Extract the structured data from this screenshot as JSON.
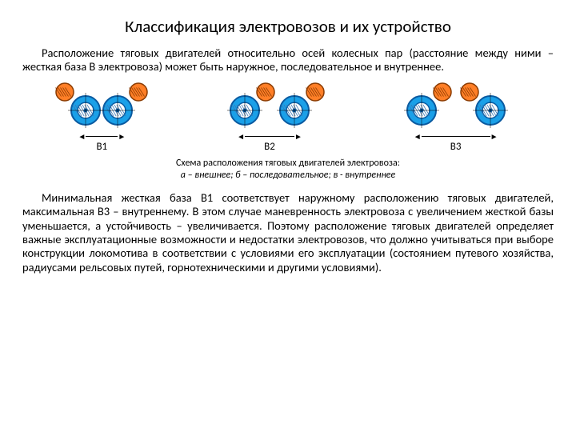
{
  "title": "Классификация электровозов и их устройство",
  "para1": "Расположение тяговых двигателей относительно осей колесных пар (расстояние между ними – жесткая база В электровоза) может быть наружное, последовательное и внутреннее.",
  "caption_line1": "Схема расположения тяговых двигателей электровоза:",
  "caption_line2": "а – внешнее; б – последовательное; в - внутреннее",
  "para2": "Минимальная жесткая база В1 соответствует наружному расположению тяговых двигателей, максимальная В3 – внутреннему. В этом случае маневренность электровоза с увеличением жесткой базы уменьшается, а устойчивость – увеличивается. Поэтому расположение тяговых двигателей определяет важные эксплуатационные возможности и недостатки электровозов, что должно учитываться при выборе конструкции локомотива в соответствии с условиями его эксплуатации (состоянием путевого хозяйства, радиусами рельсовых путей, горнотехническими и другими условиями).",
  "diagram": {
    "colors": {
      "wheel_fill": "#1aa0e8",
      "wheel_stroke": "#0a5aa0",
      "hatch": "#3a78b5",
      "motor_fill": "#ff7f27",
      "motor_stroke": "#8a3a00",
      "line": "#000000"
    },
    "wheel_r": 18,
    "motor_r": 11,
    "assemblies": [
      {
        "label": "B1",
        "wheel_gap": 40,
        "motor_side": "outer",
        "dim_width": 40
      },
      {
        "label": "B2",
        "wheel_gap": 62,
        "motor_side": "seq",
        "dim_width": 62
      },
      {
        "label": "B3",
        "wheel_gap": 86,
        "motor_side": "inner",
        "dim_width": 86
      }
    ]
  }
}
